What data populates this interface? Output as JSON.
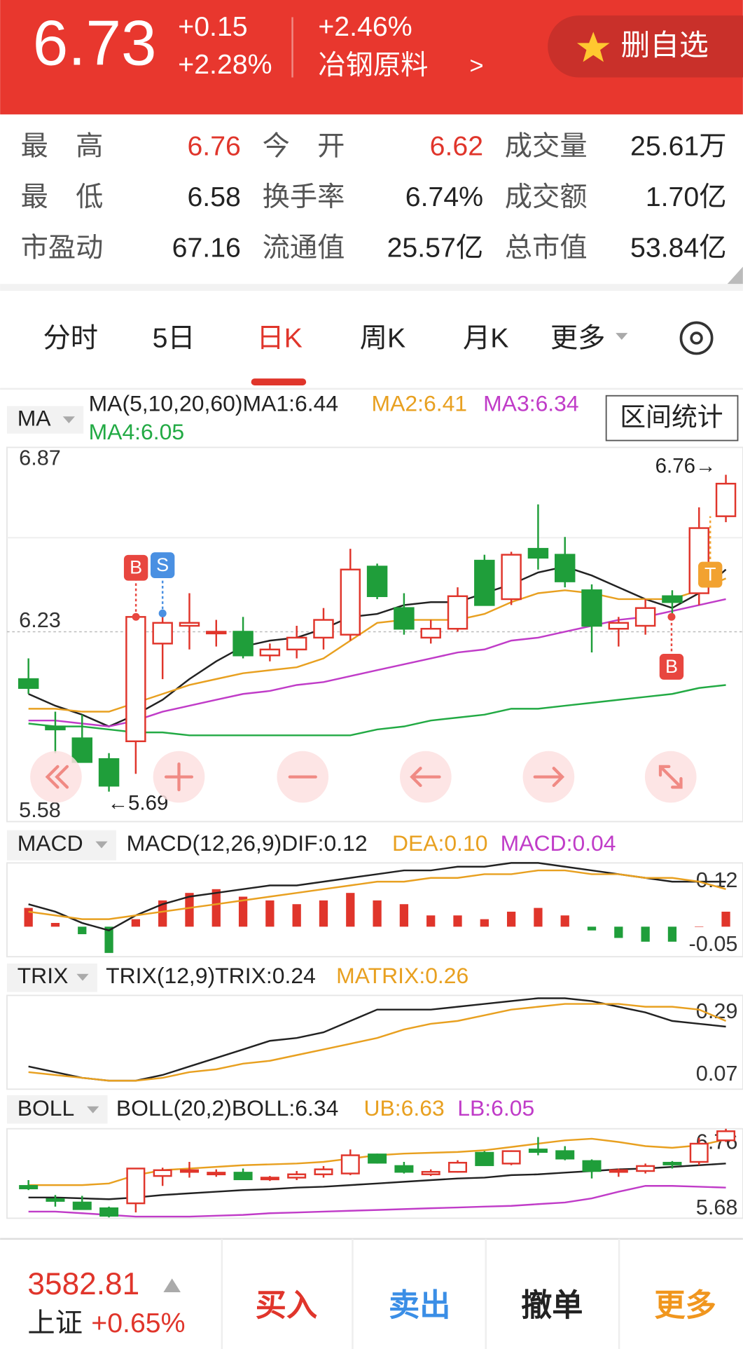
{
  "header": {
    "price": "6.73",
    "change": "+0.15",
    "change_pct": "+2.28%",
    "sector_pct": "+2.46%",
    "sector": "冶钢原料",
    "sector_arrow": ">",
    "button": "删自选"
  },
  "stats": [
    {
      "label": "最　高",
      "value": "6.76",
      "color": "#e0352b"
    },
    {
      "label": "今　开",
      "value": "6.62",
      "color": "#e0352b"
    },
    {
      "label": "成交量",
      "value": "25.61万"
    },
    {
      "label": "最　低",
      "value": "6.58"
    },
    {
      "label": "换手率",
      "value": "6.74%"
    },
    {
      "label": "成交额",
      "value": "1.70亿"
    },
    {
      "label": "市盈动",
      "value": "67.16"
    },
    {
      "label": "流通值",
      "value": "25.57亿"
    },
    {
      "label": "总市值",
      "value": "53.84亿"
    }
  ],
  "tabs": [
    "分时",
    "5日",
    "日K",
    "周K",
    "月K",
    "更多"
  ],
  "active_tab": "日K",
  "range_button": "区间统计",
  "annotations": {
    "high": "6.76→",
    "low": "←5.69"
  },
  "markers": [
    "B",
    "S",
    "B",
    "T"
  ],
  "chart_data": [
    {
      "type": "candlestick",
      "selector": "MA",
      "legend": [
        {
          "text": "MA(5,10,20,60)MA1:6.44",
          "color": "#222222"
        },
        {
          "text": "MA2:6.41",
          "color": "#e8a020"
        },
        {
          "text": "MA3:6.34",
          "color": "#c03cc8"
        },
        {
          "text": "MA4:6.05",
          "color": "#22aa44"
        }
      ],
      "ylim": [
        5.58,
        6.87
      ],
      "yticks": [
        6.87,
        6.23,
        5.58
      ],
      "up_color": "#e0352b",
      "down_color": "#1f9e3a",
      "open": [
        6.07,
        5.91,
        5.87,
        5.8,
        5.86,
        6.19,
        6.25,
        6.23,
        6.23,
        6.15,
        6.17,
        6.21,
        6.22,
        6.45,
        6.31,
        6.21,
        6.24,
        6.47,
        6.34,
        6.51,
        6.49,
        6.37,
        6.24,
        6.25,
        6.35,
        6.36,
        6.62
      ],
      "high": [
        6.14,
        5.96,
        5.95,
        5.82,
        6.28,
        6.29,
        6.36,
        6.27,
        6.28,
        6.19,
        6.25,
        6.31,
        6.51,
        6.46,
        6.36,
        6.27,
        6.38,
        6.49,
        6.5,
        6.66,
        6.55,
        6.39,
        6.28,
        6.34,
        6.37,
        6.65,
        6.76
      ],
      "low": [
        6.02,
        5.82,
        5.79,
        5.69,
        5.75,
        6.07,
        6.17,
        6.18,
        6.14,
        6.13,
        6.14,
        6.17,
        6.2,
        6.34,
        6.22,
        6.19,
        6.23,
        6.32,
        6.32,
        6.44,
        6.38,
        6.16,
        6.18,
        6.22,
        6.28,
        6.32,
        6.6
      ],
      "close": [
        6.04,
        5.9,
        5.79,
        5.71,
        6.28,
        6.26,
        6.26,
        6.23,
        6.15,
        6.17,
        6.21,
        6.27,
        6.44,
        6.35,
        6.24,
        6.24,
        6.35,
        6.32,
        6.49,
        6.48,
        6.4,
        6.25,
        6.26,
        6.31,
        6.33,
        6.58,
        6.73
      ],
      "series": [
        {
          "color": "#222222",
          "values": [
            6.02,
            5.98,
            5.95,
            5.91,
            5.95,
            6.0,
            6.07,
            6.13,
            6.18,
            6.2,
            6.21,
            6.24,
            6.28,
            6.29,
            6.32,
            6.33,
            6.33,
            6.36,
            6.39,
            6.43,
            6.45,
            6.42,
            6.38,
            6.34,
            6.31,
            6.36,
            6.44
          ]
        },
        {
          "color": "#e8a020",
          "values": [
            5.97,
            5.97,
            5.96,
            5.96,
            5.99,
            6.02,
            6.05,
            6.07,
            6.09,
            6.1,
            6.11,
            6.14,
            6.2,
            6.26,
            6.27,
            6.27,
            6.27,
            6.29,
            6.33,
            6.36,
            6.37,
            6.36,
            6.34,
            6.34,
            6.34,
            6.37,
            6.41
          ]
        },
        {
          "color": "#c03cc8",
          "values": [
            5.93,
            5.93,
            5.92,
            5.91,
            5.93,
            5.96,
            5.98,
            6.0,
            6.02,
            6.03,
            6.05,
            6.06,
            6.08,
            6.1,
            6.12,
            6.14,
            6.16,
            6.17,
            6.2,
            6.21,
            6.23,
            6.25,
            6.27,
            6.28,
            6.3,
            6.32,
            6.34
          ]
        },
        {
          "color": "#22aa44",
          "values": [
            5.92,
            5.91,
            5.91,
            5.9,
            5.89,
            5.89,
            5.88,
            5.88,
            5.88,
            5.88,
            5.88,
            5.88,
            5.88,
            5.9,
            5.91,
            5.93,
            5.94,
            5.95,
            5.97,
            5.97,
            5.98,
            5.99,
            6.0,
            6.01,
            6.02,
            6.04,
            6.05
          ]
        }
      ]
    },
    {
      "type": "macd",
      "selector": "MACD",
      "legend": [
        {
          "text": "MACD(12,26,9)DIF:0.12",
          "color": "#222222"
        },
        {
          "text": "DEA:0.10",
          "color": "#e8a020"
        },
        {
          "text": "MACD:0.04",
          "color": "#c03cc8"
        }
      ],
      "ylim": [
        -0.08,
        0.17
      ],
      "yticks": [
        0.12,
        -0.05
      ],
      "up_color": "#e0352b",
      "down_color": "#1f9e3a",
      "histogram": [
        0.05,
        0.01,
        -0.02,
        -0.07,
        0.02,
        0.07,
        0.09,
        0.1,
        0.08,
        0.07,
        0.06,
        0.07,
        0.09,
        0.07,
        0.06,
        0.03,
        0.03,
        0.02,
        0.04,
        0.05,
        0.03,
        -0.01,
        -0.03,
        -0.04,
        -0.04,
        0,
        0.04
      ],
      "series": [
        {
          "color": "#222222",
          "values": [
            0.06,
            0.04,
            0.01,
            -0.01,
            0.03,
            0.06,
            0.08,
            0.09,
            0.1,
            0.11,
            0.11,
            0.12,
            0.13,
            0.14,
            0.15,
            0.15,
            0.16,
            0.16,
            0.17,
            0.17,
            0.16,
            0.15,
            0.14,
            0.13,
            0.12,
            0.12,
            0.12
          ]
        },
        {
          "color": "#e8a020",
          "values": [
            0.04,
            0.03,
            0.02,
            0.02,
            0.03,
            0.04,
            0.05,
            0.06,
            0.07,
            0.08,
            0.09,
            0.1,
            0.11,
            0.12,
            0.12,
            0.13,
            0.13,
            0.14,
            0.14,
            0.15,
            0.15,
            0.14,
            0.14,
            0.13,
            0.13,
            0.12,
            0.1
          ]
        }
      ]
    },
    {
      "type": "trix",
      "selector": "TRIX",
      "legend": [
        {
          "text": "TRIX(12,9)TRIX:0.24",
          "color": "#222222"
        },
        {
          "text": "MATRIX:0.26",
          "color": "#e8a020"
        }
      ],
      "ylim": [
        0.02,
        0.35
      ],
      "yticks": [
        0.29,
        0.07
      ],
      "series": [
        {
          "color": "#222222",
          "values": [
            0.1,
            0.08,
            0.06,
            0.05,
            0.05,
            0.07,
            0.1,
            0.13,
            0.16,
            0.19,
            0.2,
            0.22,
            0.26,
            0.3,
            0.3,
            0.3,
            0.31,
            0.32,
            0.33,
            0.34,
            0.34,
            0.33,
            0.31,
            0.29,
            0.26,
            0.25,
            0.24
          ]
        },
        {
          "color": "#e8a020",
          "values": [
            0.08,
            0.07,
            0.06,
            0.05,
            0.05,
            0.06,
            0.08,
            0.09,
            0.11,
            0.12,
            0.14,
            0.16,
            0.18,
            0.2,
            0.23,
            0.25,
            0.26,
            0.28,
            0.3,
            0.31,
            0.32,
            0.32,
            0.32,
            0.31,
            0.31,
            0.3,
            0.26
          ]
        }
      ]
    },
    {
      "type": "boll",
      "selector": "BOLL",
      "legend": [
        {
          "text": "BOLL(20,2)BOLL:6.34",
          "color": "#222222"
        },
        {
          "text": "UB:6.63",
          "color": "#e8a020"
        },
        {
          "text": "LB:6.05",
          "color": "#c03cc8"
        }
      ],
      "ylim": [
        5.68,
        6.76
      ],
      "yticks": [
        6.76,
        5.68
      ],
      "mid_color": "#222222",
      "series": [
        {
          "color": "#e8a020",
          "values": [
            6.08,
            6.08,
            6.08,
            6.1,
            6.2,
            6.26,
            6.28,
            6.3,
            6.32,
            6.33,
            6.34,
            6.36,
            6.4,
            6.44,
            6.46,
            6.47,
            6.48,
            6.5,
            6.54,
            6.58,
            6.62,
            6.64,
            6.6,
            6.55,
            6.53,
            6.56,
            6.63
          ]
        },
        {
          "color": "#c03cc8",
          "values": [
            5.76,
            5.76,
            5.74,
            5.72,
            5.7,
            5.7,
            5.7,
            5.71,
            5.72,
            5.74,
            5.75,
            5.76,
            5.77,
            5.78,
            5.79,
            5.8,
            5.81,
            5.82,
            5.83,
            5.85,
            5.87,
            5.92,
            6.0,
            6.07,
            6.07,
            6.06,
            6.05
          ]
        }
      ]
    }
  ],
  "footer": {
    "index_value": "3582.81",
    "index_name": "上证",
    "index_change": "+0.65%",
    "buttons": [
      {
        "text": "买入",
        "color": "#e0352b"
      },
      {
        "text": "卖出",
        "color": "#3a8ee6"
      },
      {
        "text": "撤单",
        "color": "#222222"
      },
      {
        "text": "更多",
        "color": "#f0961e"
      }
    ]
  }
}
